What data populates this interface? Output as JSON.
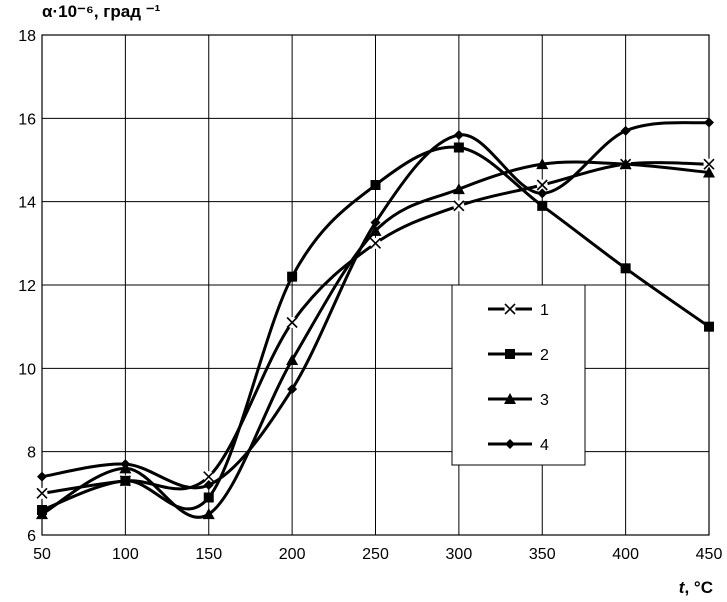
{
  "chart_data": {
    "type": "line",
    "ylabel": "α·10⁻⁶, град ⁻¹",
    "xlabel_var": "t",
    "xlabel_unit": ", °C",
    "x": [
      50,
      100,
      150,
      200,
      250,
      300,
      350,
      400,
      450
    ],
    "xlim": [
      50,
      450
    ],
    "ylim": [
      6,
      18
    ],
    "yticks": [
      6,
      8,
      10,
      12,
      14,
      16,
      18
    ],
    "xticks": [
      50,
      100,
      150,
      200,
      250,
      300,
      350,
      400,
      450
    ],
    "grid": true,
    "legend_position": "center-right",
    "series": [
      {
        "name": "1",
        "marker": "x",
        "values": [
          7.0,
          7.3,
          7.4,
          11.1,
          13.0,
          13.9,
          14.4,
          14.9,
          14.9
        ]
      },
      {
        "name": "2",
        "marker": "square",
        "values": [
          6.6,
          7.3,
          6.9,
          12.2,
          14.4,
          15.3,
          13.9,
          12.4,
          11.0
        ]
      },
      {
        "name": "3",
        "marker": "triangle",
        "values": [
          6.5,
          7.6,
          6.5,
          10.2,
          13.3,
          14.3,
          14.9,
          14.9,
          14.7
        ]
      },
      {
        "name": "4",
        "marker": "diamond",
        "values": [
          7.4,
          7.7,
          7.2,
          9.5,
          13.5,
          15.6,
          14.2,
          15.7,
          15.9
        ]
      }
    ]
  }
}
